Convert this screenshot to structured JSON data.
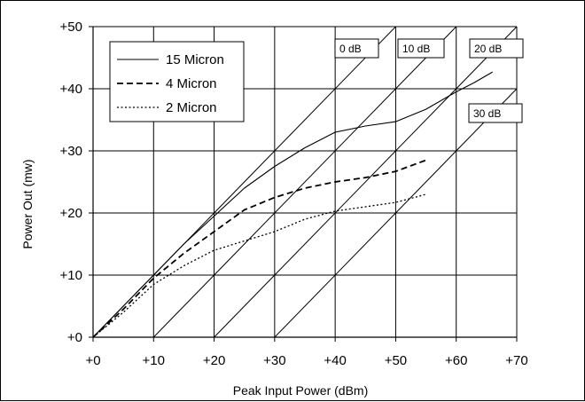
{
  "chart_data": {
    "type": "line",
    "title": "",
    "xlabel": "Peak Input Power (dBm)",
    "ylabel": "Power Out (mw)",
    "xlim": [
      0,
      70
    ],
    "ylim": [
      0,
      50
    ],
    "x_ticks": [
      "+0",
      "+10",
      "+20",
      "+30",
      "+40",
      "+50",
      "+60",
      "+70"
    ],
    "y_ticks": [
      "+0",
      "+10",
      "+20",
      "+30",
      "+40",
      "+50"
    ],
    "grid": true,
    "legend_position": "top-left",
    "series": [
      {
        "name": "15 Micron",
        "style": "solid",
        "x": [
          0,
          5,
          10,
          15,
          20,
          25,
          30,
          35,
          40,
          45,
          50,
          55,
          60,
          63,
          66
        ],
        "y": [
          0,
          5,
          10,
          15,
          19.5,
          24,
          27.5,
          30.5,
          33,
          34,
          34.7,
          36.7,
          39.5,
          41,
          42.7
        ]
      },
      {
        "name": "4 Micron",
        "style": "dashed",
        "x": [
          0,
          5,
          10,
          15,
          20,
          25,
          30,
          35,
          40,
          45,
          50,
          55
        ],
        "y": [
          0,
          4.5,
          9.5,
          13.5,
          17,
          20.5,
          22.5,
          24,
          25,
          25.7,
          26.7,
          28.5
        ]
      },
      {
        "name": "2 Micron",
        "style": "dotted",
        "x": [
          0,
          5,
          10,
          15,
          20,
          25,
          30,
          35,
          40,
          45,
          50,
          55
        ],
        "y": [
          0,
          4,
          8.5,
          11.5,
          14,
          15.5,
          17,
          19,
          20.3,
          21,
          21.7,
          23
        ]
      }
    ],
    "reference_lines": [
      {
        "label": "0 dB",
        "offset": 0
      },
      {
        "label": "10 dB",
        "offset": 10
      },
      {
        "label": "20 dB",
        "offset": 20
      },
      {
        "label": "30 dB",
        "offset": 30
      }
    ]
  }
}
